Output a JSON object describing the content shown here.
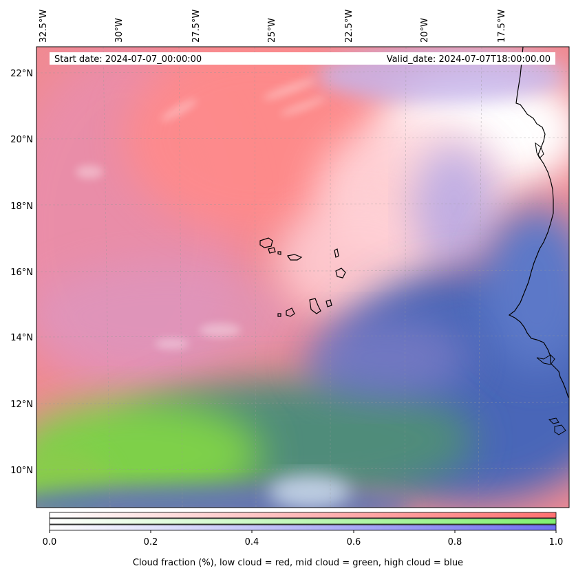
{
  "map": {
    "start_date": "Start date: 2024-07-07_00:00:00",
    "valid_date": "Valid_date: 2024-07-07T18:00:00.00",
    "lon_labels": [
      "32.5°W",
      "30°W",
      "27.5°W",
      "25°W",
      "22.5°W",
      "20°W",
      "17.5°W"
    ],
    "lat_labels": [
      "22°N",
      "20°N",
      "18°N",
      "16°N",
      "14°N",
      "12°N",
      "10°N"
    ],
    "colors": {
      "low_cloud": "#ff8080",
      "mid_cloud": "#80e060",
      "high_cloud": "#6070d0",
      "clear": "#ffffff",
      "coastline": "#000000"
    }
  },
  "colorbar": {
    "tick_labels": [
      "0.0",
      "0.2",
      "0.4",
      "0.6",
      "0.8",
      "1.0"
    ],
    "caption": "Cloud fraction (%), low cloud = red, mid cloud = green, high cloud = blue",
    "bands": [
      "low cloud",
      "mid cloud",
      "high cloud"
    ],
    "band_colors": [
      "#ff7070",
      "#80f070",
      "#7070f0"
    ]
  }
}
